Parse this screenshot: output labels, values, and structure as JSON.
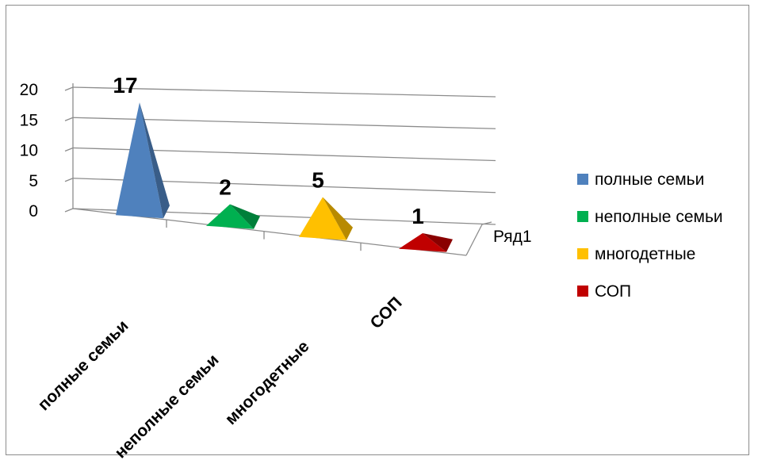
{
  "chart_data": {
    "type": "bar",
    "style": "3d-pyramid",
    "categories": [
      "полные семьи",
      "неполные семьи",
      "многодетные",
      "СОП"
    ],
    "series": [
      {
        "name": "Ряд1",
        "values": [
          17,
          2,
          5,
          1
        ]
      }
    ],
    "data_labels": [
      "17",
      "2",
      "5",
      "1"
    ],
    "colors": [
      "#4f81bd",
      "#00b050",
      "#ffc000",
      "#c00000"
    ],
    "yticks": [
      0,
      5,
      10,
      15,
      20
    ],
    "ylim": [
      0,
      20
    ],
    "grid": true,
    "legend": {
      "position": "right",
      "entries": [
        "полные семьи",
        "неполные семьи",
        "многодетные",
        "СОП"
      ]
    },
    "depth_axis_label": "Ряд1"
  }
}
